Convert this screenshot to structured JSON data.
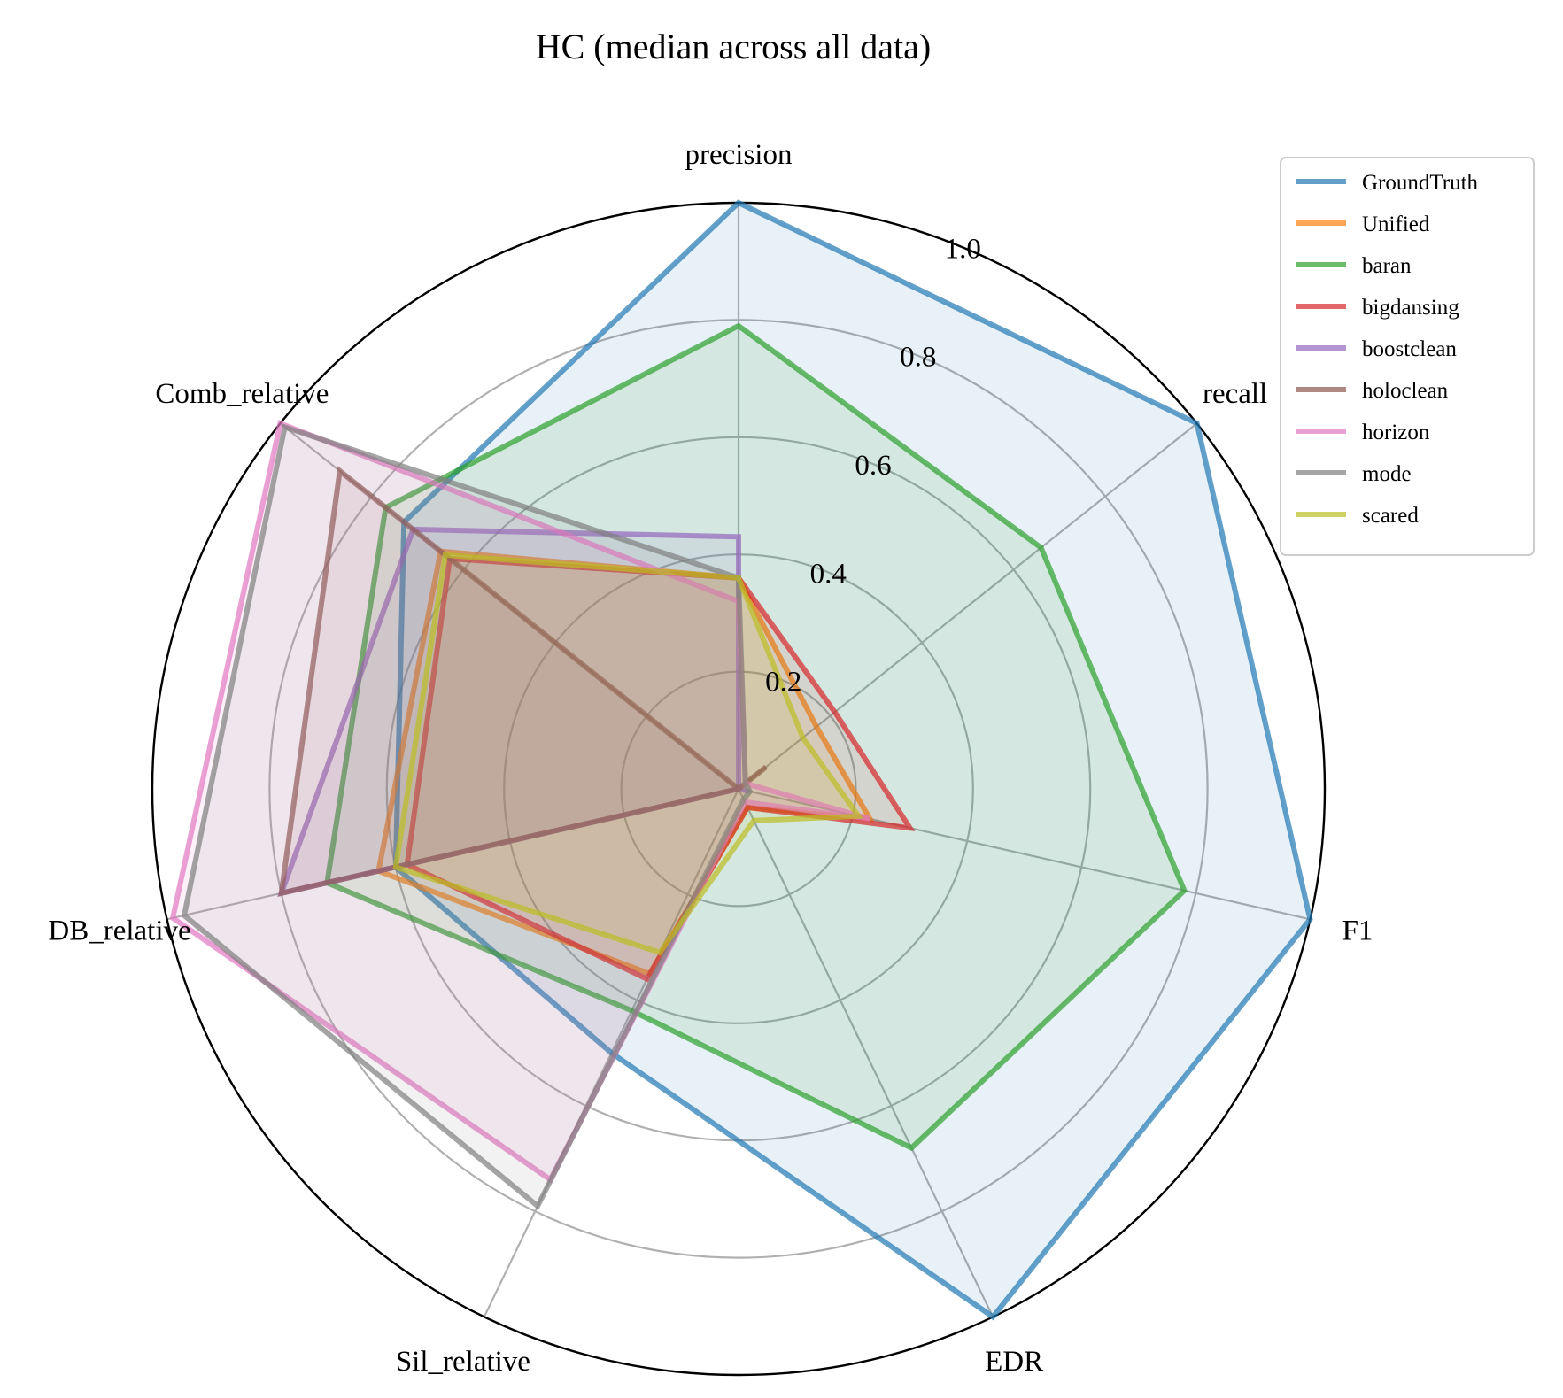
{
  "chart_data": {
    "type": "radar",
    "title": "HC (median across all data)",
    "axes": [
      "precision",
      "recall",
      "F1",
      "EDR",
      "Sil_relative",
      "DB_relative",
      "Comb_relative"
    ],
    "rlim": [
      0,
      1.0
    ],
    "rticks": [
      0.2,
      0.4,
      0.6,
      0.8,
      1.0
    ],
    "rtick_labels": [
      "0.2",
      "0.4",
      "0.6",
      "0.8",
      "1.0"
    ],
    "grid": true,
    "legend_position": "top-right",
    "series": [
      {
        "name": "GroundTruth",
        "color": "#1f77b4",
        "values": [
          1.0,
          1.0,
          1.0,
          1.0,
          0.5,
          0.6,
          0.73
        ]
      },
      {
        "name": "Unified",
        "color": "#ff7f0e",
        "values": [
          0.36,
          0.17,
          0.23,
          0.035,
          0.35,
          0.63,
          0.65
        ]
      },
      {
        "name": "baran",
        "color": "#2ca02c",
        "values": [
          0.79,
          0.66,
          0.78,
          0.68,
          0.42,
          0.72,
          0.77
        ]
      },
      {
        "name": "bigdansing",
        "color": "#d62728",
        "values": [
          0.36,
          0.21,
          0.3,
          0.035,
          0.36,
          0.58,
          0.63
        ]
      },
      {
        "name": "boostclean",
        "color": "#9467bd",
        "values": [
          0.43,
          0.0,
          0.02,
          0.0,
          0.0,
          0.8,
          0.71
        ]
      },
      {
        "name": "holoclean",
        "color": "#8c564b",
        "values": [
          0.0,
          0.06,
          0.0,
          0.0,
          0.0,
          0.8,
          0.87
        ]
      },
      {
        "name": "horizon",
        "color": "#e377c2",
        "values": [
          0.32,
          0.015,
          0.23,
          0.025,
          0.74,
          0.99,
          1.0
        ]
      },
      {
        "name": "mode",
        "color": "#7f7f7f",
        "values": [
          0.36,
          0.015,
          0.02,
          0.02,
          0.79,
          0.97,
          0.99
        ]
      },
      {
        "name": "scared",
        "color": "#bcbd22",
        "values": [
          0.36,
          0.14,
          0.21,
          0.06,
          0.31,
          0.6,
          0.64
        ]
      }
    ]
  }
}
